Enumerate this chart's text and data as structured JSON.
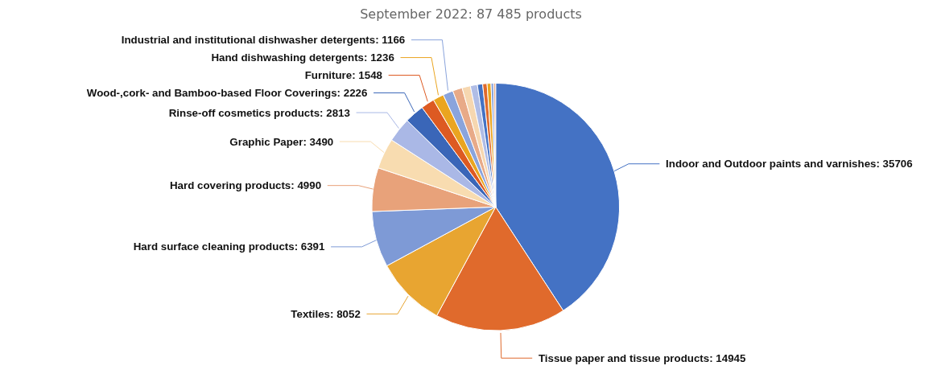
{
  "chart_data": {
    "type": "pie",
    "title": "September 2022: 87 485 products",
    "categories": [
      "Indoor and Outdoor paints and varnishes",
      "Tissue paper and tissue products",
      "Textiles",
      "Hard surface cleaning products",
      "Hard covering products",
      "Graphic Paper",
      "Rinse-off cosmetics products",
      "Wood-,cork- and Bamboo-based Floor Coverings",
      "Furniture",
      "Hand dishwashing detergents",
      "Industrial and institutional dishwasher detergents",
      null,
      null,
      null,
      null,
      null,
      null,
      null,
      null
    ],
    "values": [
      35706,
      14945,
      8052,
      6391,
      4990,
      3490,
      2813,
      2226,
      1548,
      1236,
      1166,
      1100,
      950,
      800,
      600,
      500,
      450,
      300,
      222
    ],
    "colors": [
      "#4472c4",
      "#e06a2c",
      "#e8a531",
      "#7e9ad6",
      "#e8a27a",
      "#f8dcb0",
      "#aab8e6",
      "#3a66b8",
      "#dd5a22",
      "#eaa520",
      "#8aa4dc",
      "#e8aa88",
      "#f6d7b0",
      "#b0bde6",
      "#4472c4",
      "#e06a2c",
      "#eaa520",
      "#8aa4dc",
      "#e8aa88"
    ],
    "value_labels": [
      "35706",
      "14945",
      "8052",
      "6391",
      "4990",
      "3490",
      "2813",
      "2226",
      "1548",
      "1236",
      "1166",
      null,
      null,
      null,
      null,
      null,
      null,
      null,
      null
    ],
    "legend": false
  }
}
